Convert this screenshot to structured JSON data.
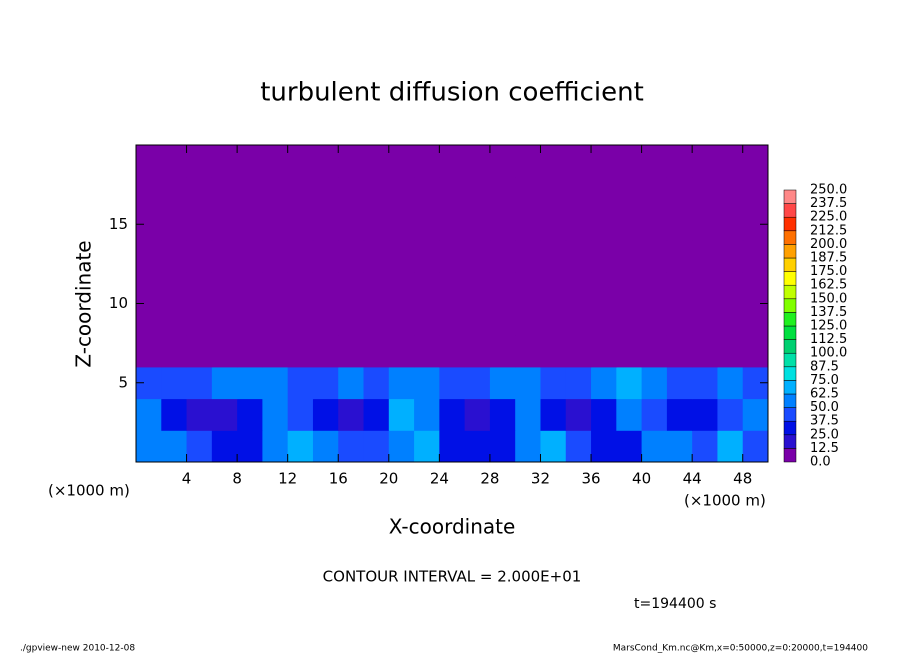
{
  "chart_data": {
    "type": "heatmap",
    "title": "turbulent diffusion coefficient",
    "x_label": "X-coordinate",
    "y_label": "Z-coordinate",
    "x_unit": "(×1000 m)",
    "xlim": [
      0,
      50
    ],
    "ylim": [
      0,
      20
    ],
    "xticks": [
      4,
      8,
      12,
      16,
      20,
      24,
      28,
      32,
      36,
      40,
      44,
      48
    ],
    "yticks": [
      5,
      10,
      15
    ],
    "x": [
      1,
      3,
      5,
      7,
      9,
      11,
      13,
      15,
      17,
      19,
      21,
      23,
      25,
      27,
      29,
      31,
      33,
      35,
      37,
      39,
      41,
      43,
      45,
      47,
      49
    ],
    "y": [
      1,
      3,
      5,
      7,
      9,
      11,
      13,
      15,
      17,
      19
    ],
    "z": [
      [
        55,
        50,
        40,
        30,
        35,
        60,
        70,
        50,
        45,
        40,
        60,
        70,
        30,
        25,
        30,
        55,
        65,
        40,
        30,
        35,
        60,
        55,
        40,
        70,
        45
      ],
      [
        50,
        35,
        20,
        20,
        30,
        55,
        40,
        25,
        20,
        30,
        65,
        50,
        25,
        20,
        25,
        60,
        35,
        20,
        30,
        50,
        45,
        30,
        25,
        40,
        50
      ],
      [
        45,
        40,
        45,
        50,
        55,
        60,
        45,
        40,
        50,
        45,
        55,
        50,
        45,
        40,
        50,
        60,
        45,
        40,
        55,
        70,
        50,
        45,
        40,
        50,
        45
      ],
      [
        0,
        0,
        0,
        0,
        0,
        0,
        0,
        0,
        0,
        0,
        0,
        0,
        0,
        0,
        0,
        5,
        10,
        5,
        0,
        0,
        0,
        0,
        0,
        0,
        0
      ],
      [
        0,
        0,
        0,
        0,
        0,
        0,
        0,
        0,
        0,
        0,
        0,
        0,
        0,
        0,
        0,
        0,
        0,
        0,
        0,
        0,
        0,
        0,
        0,
        0,
        0
      ],
      [
        0,
        0,
        0,
        0,
        0,
        0,
        0,
        0,
        0,
        0,
        0,
        0,
        0,
        0,
        0,
        0,
        0,
        0,
        0,
        0,
        0,
        0,
        0,
        0,
        0
      ],
      [
        0,
        0,
        0,
        0,
        0,
        0,
        0,
        0,
        0,
        0,
        0,
        0,
        0,
        0,
        0,
        0,
        0,
        0,
        0,
        0,
        0,
        0,
        0,
        0,
        0
      ],
      [
        0,
        0,
        0,
        0,
        0,
        0,
        0,
        0,
        0,
        0,
        0,
        0,
        0,
        0,
        0,
        0,
        0,
        0,
        0,
        0,
        0,
        0,
        0,
        0,
        0
      ],
      [
        0,
        0,
        0,
        0,
        0,
        0,
        0,
        0,
        0,
        0,
        0,
        0,
        0,
        0,
        0,
        0,
        0,
        0,
        0,
        0,
        0,
        0,
        0,
        0,
        0
      ],
      [
        0,
        0,
        0,
        0,
        0,
        0,
        0,
        0,
        0,
        0,
        0,
        0,
        0,
        0,
        0,
        0,
        0,
        0,
        0,
        0,
        0,
        0,
        0,
        0,
        0
      ]
    ],
    "levels": [
      {
        "value": 0,
        "label": "0.0"
      },
      12.5,
      {
        "value": 25,
        "label": "25.0"
      },
      37.5,
      {
        "value": 50,
        "label": "50.0"
      },
      62.5,
      {
        "value": 75,
        "label": "75.0"
      },
      87.5,
      {
        "value": 100,
        "label": "100.0"
      },
      112.5,
      {
        "value": 125,
        "label": "125.0"
      },
      137.5,
      {
        "value": 150,
        "label": "150.0"
      },
      162.5,
      {
        "value": 175,
        "label": "175.0"
      },
      187.5,
      {
        "value": 200,
        "label": "200.0"
      },
      212.5,
      {
        "value": 225,
        "label": "225.0"
      },
      237.5,
      {
        "value": 250,
        "label": "250.0"
      }
    ],
    "colors": [
      "#7a00a8",
      "#2a10d0",
      "#0010e6",
      "#1a4bff",
      "#0080ff",
      "#00b0ff",
      "#00e0e0",
      "#00e0a8",
      "#00d070",
      "#00e040",
      "#20f020",
      "#80ff00",
      "#c0ff00",
      "#ffff00",
      "#ffd000",
      "#ffa000",
      "#ff7000",
      "#ff3000",
      "#ff4848",
      "#ff8888"
    ],
    "contour_interval": "CONTOUR INTERVAL = 2.000E+01",
    "time_label": "t=194400 s",
    "footer_left": "./gpview-new   2010-12-08",
    "footer_right": "MarsCond_Km.nc@Km,x=0:50000,z=0:20000,t=194400"
  }
}
